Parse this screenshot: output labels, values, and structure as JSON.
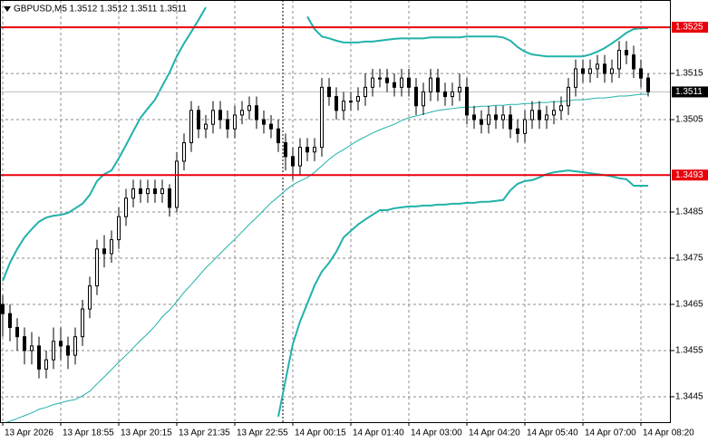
{
  "chart_data": {
    "type": "candlestick",
    "title": "GBPUSD,M5  1.3512 1.3512 1.3511 1.3511",
    "ylim": [
      1.34395,
      1.35309
    ],
    "yticks": [
      1.3445,
      1.3455,
      1.3465,
      1.3475,
      1.3485,
      1.3505,
      1.3515
    ],
    "grid": true,
    "candle_color": "#000000",
    "categories": [
      "13 Apr 2026",
      null,
      null,
      null,
      null,
      null,
      null,
      null,
      "13 Apr 18:55",
      null,
      null,
      null,
      null,
      null,
      null,
      null,
      "13 Apr 20:15",
      null,
      null,
      null,
      null,
      null,
      null,
      null,
      "13 Apr 21:35",
      null,
      null,
      null,
      null,
      null,
      null,
      null,
      "13 Apr 22:55",
      null,
      null,
      null,
      null,
      null,
      null,
      null,
      "14 Apr 00:15",
      null,
      null,
      null,
      null,
      null,
      null,
      null,
      "14 Apr 01:40",
      null,
      null,
      null,
      null,
      null,
      null,
      null,
      "14 Apr 03:00",
      null,
      null,
      null,
      null,
      null,
      null,
      null,
      "14 Apr 04:20",
      null,
      null,
      null,
      null,
      null,
      null,
      null,
      "14 Apr 05:40",
      null,
      null,
      null,
      null,
      null,
      null,
      null,
      "14 Apr 07:00",
      null,
      null,
      null,
      null,
      null,
      null,
      null,
      "14 Apr 08:20",
      null
    ],
    "open": [
      1.3465,
      1.3463,
      1.346,
      1.3458,
      1.3455,
      1.3456,
      1.3451,
      1.3453,
      1.3457,
      1.3456,
      1.3454,
      1.3458,
      1.3464,
      1.3469,
      1.3477,
      1.3476,
      1.3479,
      1.3484,
      1.3488,
      1.349,
      1.3489,
      1.349,
      1.3489,
      1.349,
      1.3486,
      1.3496,
      1.35,
      1.3507,
      1.3503,
      1.3504,
      1.3507,
      1.3505,
      1.3503,
      1.3506,
      1.3507,
      1.3508,
      1.3505,
      1.3504,
      1.3503,
      1.35,
      1.3497,
      1.3495,
      1.3499,
      1.3498,
      1.3499,
      1.3512,
      1.351,
      1.3507,
      1.3509,
      1.3509,
      1.351,
      1.3512,
      1.3514,
      1.3514,
      1.3513,
      1.3512,
      1.3514,
      1.3512,
      1.3508,
      1.3511,
      1.3514,
      1.3511,
      1.351,
      1.3511,
      1.3512,
      1.3506,
      1.3505,
      1.3504,
      1.3506,
      1.3505,
      1.3506,
      1.3503,
      1.3502,
      1.3505,
      1.3507,
      1.3505,
      1.3506,
      1.3507,
      1.3508,
      1.3512,
      1.3516,
      1.3515,
      1.3516,
      1.3517,
      1.3515,
      1.3516,
      1.352,
      1.3519,
      1.3516,
      1.3514
    ],
    "high": [
      1.3467,
      1.3465,
      1.3462,
      1.346,
      1.3459,
      1.3458,
      1.3455,
      1.346,
      1.346,
      1.3458,
      1.346,
      1.3466,
      1.3471,
      1.3479,
      1.348,
      1.3481,
      1.3486,
      1.349,
      1.3492,
      1.3492,
      1.3492,
      1.3492,
      1.3492,
      1.3491,
      1.3498,
      1.3502,
      1.3509,
      1.3508,
      1.3506,
      1.3509,
      1.3509,
      1.3507,
      1.3508,
      1.3509,
      1.351,
      1.351,
      1.3507,
      1.3506,
      1.3505,
      1.3502,
      1.3499,
      1.3501,
      1.3501,
      1.3501,
      1.3514,
      1.3514,
      1.3512,
      1.3511,
      1.3511,
      1.3512,
      1.3515,
      1.3516,
      1.3516,
      1.3516,
      1.3515,
      1.3516,
      1.3516,
      1.3514,
      1.3513,
      1.3516,
      1.3516,
      1.3513,
      1.3513,
      1.3515,
      1.3514,
      1.3508,
      1.3507,
      1.3508,
      1.3508,
      1.3508,
      1.3508,
      1.3505,
      1.3507,
      1.3509,
      1.3509,
      1.3508,
      1.3509,
      1.351,
      1.3514,
      1.3518,
      1.3518,
      1.3518,
      1.3519,
      1.3519,
      1.3518,
      1.3522,
      1.3522,
      1.3521,
      1.3518,
      1.3515
    ],
    "low": [
      1.3458,
      1.3457,
      1.3455,
      1.3452,
      1.3452,
      1.3449,
      1.3449,
      1.3451,
      1.3453,
      1.3451,
      1.3452,
      1.3456,
      1.3462,
      1.3467,
      1.3473,
      1.3474,
      1.3477,
      1.3482,
      1.3486,
      1.3487,
      1.3487,
      1.3487,
      1.3487,
      1.3484,
      1.3485,
      1.3494,
      1.3498,
      1.3501,
      1.3501,
      1.3502,
      1.3503,
      1.3501,
      1.3501,
      1.3504,
      1.3505,
      1.3503,
      1.3502,
      1.3501,
      1.3498,
      1.3494,
      1.3492,
      1.3493,
      1.3496,
      1.3496,
      1.3497,
      1.3508,
      1.3505,
      1.3505,
      1.3507,
      1.3507,
      1.3508,
      1.351,
      1.3512,
      1.3511,
      1.351,
      1.351,
      1.351,
      1.3506,
      1.3506,
      1.3509,
      1.3509,
      1.3508,
      1.3508,
      1.3509,
      1.3504,
      1.3503,
      1.3502,
      1.3502,
      1.3503,
      1.3503,
      1.3501,
      1.35,
      1.35,
      1.3503,
      1.3503,
      1.3503,
      1.3504,
      1.3505,
      1.3506,
      1.351,
      1.3513,
      1.3513,
      1.3514,
      1.3513,
      1.3513,
      1.3514,
      1.3517,
      1.3514,
      1.3512,
      1.351
    ],
    "close": [
      1.3463,
      1.346,
      1.3458,
      1.3455,
      1.3456,
      1.3451,
      1.3453,
      1.3457,
      1.3456,
      1.3454,
      1.3458,
      1.3464,
      1.3469,
      1.3477,
      1.3476,
      1.3479,
      1.3484,
      1.3488,
      1.349,
      1.3489,
      1.349,
      1.3489,
      1.349,
      1.3486,
      1.3496,
      1.35,
      1.3507,
      1.3503,
      1.3504,
      1.3507,
      1.3505,
      1.3503,
      1.3506,
      1.3507,
      1.3508,
      1.3505,
      1.3504,
      1.3503,
      1.35,
      1.3497,
      1.3495,
      1.3499,
      1.3498,
      1.3499,
      1.3512,
      1.351,
      1.3507,
      1.3509,
      1.3509,
      1.351,
      1.3512,
      1.3514,
      1.3514,
      1.3513,
      1.3512,
      1.3514,
      1.3512,
      1.3508,
      1.3511,
      1.3514,
      1.3511,
      1.351,
      1.3511,
      1.3512,
      1.3506,
      1.3505,
      1.3504,
      1.3506,
      1.3505,
      1.3506,
      1.3503,
      1.3502,
      1.3505,
      1.3507,
      1.3505,
      1.3506,
      1.3507,
      1.3508,
      1.3512,
      1.3516,
      1.3515,
      1.3516,
      1.3517,
      1.3515,
      1.3516,
      1.352,
      1.3519,
      1.3516,
      1.3514,
      1.3511
    ],
    "bands": {
      "color": "#20b2aa",
      "upper": [
        1.34701,
        1.3474,
        1.3477,
        1.34795,
        1.34813,
        1.34829,
        1.34838,
        1.34842,
        1.34844,
        1.34848,
        1.34858,
        1.34868,
        1.34887,
        1.34917,
        1.34932,
        1.3494,
        1.34966,
        1.34995,
        1.35025,
        1.35054,
        1.35074,
        1.35093,
        1.35123,
        1.35152,
        1.35187,
        1.35215,
        1.3524,
        1.35266,
        1.35293,
        null,
        null,
        null,
        null,
        null,
        null,
        null,
        null,
        null,
        null,
        null,
        null,
        null,
        1.35273,
        1.35246,
        1.3523,
        1.35226,
        1.35221,
        1.35217,
        1.35217,
        1.35217,
        1.35219,
        1.35219,
        1.35221,
        1.35223,
        1.35225,
        1.35226,
        1.35226,
        1.35226,
        1.35226,
        1.35228,
        1.35228,
        1.35228,
        1.35228,
        1.35228,
        1.3523,
        1.3523,
        1.3523,
        1.3523,
        1.3523,
        1.35228,
        1.35221,
        1.35207,
        1.35197,
        1.35191,
        1.35189,
        1.35187,
        1.35187,
        1.35187,
        1.35187,
        1.35187,
        1.35187,
        1.35191,
        1.35197,
        1.35205,
        1.35215,
        1.35226,
        1.35238,
        1.35246,
        1.35248,
        1.35248
      ],
      "middle": [
        1.34392,
        1.34397,
        1.34403,
        1.34409,
        1.34415,
        1.34423,
        1.34427,
        1.34433,
        1.34437,
        1.34441,
        1.34444,
        1.34452,
        1.34462,
        1.34478,
        1.34493,
        1.34509,
        1.34525,
        1.3454,
        1.34556,
        1.34572,
        1.34587,
        1.34603,
        1.34623,
        1.34638,
        1.34656,
        1.34676,
        1.34693,
        1.34711,
        1.34729,
        1.34744,
        1.3476,
        1.34776,
        1.34791,
        1.34807,
        1.34823,
        1.34838,
        1.34854,
        1.3487,
        1.34883,
        1.34897,
        1.34909,
        1.34917,
        1.34925,
        1.34936,
        1.3495,
        1.34964,
        1.34976,
        1.34985,
        1.34995,
        1.35005,
        1.35013,
        1.35021,
        1.35028,
        1.35034,
        1.3504,
        1.35048,
        1.35054,
        1.35058,
        1.35062,
        1.35066,
        1.3507,
        1.35072,
        1.35074,
        1.35076,
        1.35077,
        1.35077,
        1.35079,
        1.35079,
        1.35081,
        1.35081,
        1.35083,
        1.35083,
        1.35085,
        1.35085,
        1.35087,
        1.35087,
        1.35089,
        1.35089,
        1.35091,
        1.35093,
        1.35093,
        1.35095,
        1.35097,
        1.35097,
        1.35099,
        1.35101,
        1.35101,
        1.35103,
        1.35105,
        1.35105
      ],
      "lower": [
        null,
        null,
        null,
        null,
        null,
        null,
        null,
        null,
        null,
        null,
        null,
        null,
        null,
        null,
        null,
        null,
        null,
        null,
        null,
        null,
        null,
        null,
        null,
        null,
        null,
        null,
        null,
        null,
        null,
        null,
        null,
        null,
        null,
        null,
        null,
        null,
        null,
        null,
        1.34407,
        1.34486,
        1.34564,
        1.34613,
        1.34652,
        1.34691,
        1.34721,
        1.3474,
        1.34764,
        1.34795,
        1.34809,
        1.34823,
        1.34834,
        1.34844,
        1.34854,
        1.34854,
        1.34858,
        1.3486,
        1.34862,
        1.34862,
        1.34864,
        1.34864,
        1.34866,
        1.34866,
        1.34868,
        1.34868,
        1.3487,
        1.3487,
        1.34872,
        1.34872,
        1.34874,
        1.34876,
        1.34897,
        1.34911,
        1.34917,
        1.34919,
        1.34925,
        1.34932,
        1.34936,
        1.34938,
        1.3494,
        1.34938,
        1.34936,
        1.34934,
        1.34932,
        1.3493,
        1.34927,
        1.34923,
        1.34921,
        1.34907,
        1.34907,
        1.34907
      ]
    },
    "hlines": {
      "color": "#e8000b",
      "values": [
        1.3525,
        1.3493
      ]
    },
    "current_price": 1.3511
  }
}
